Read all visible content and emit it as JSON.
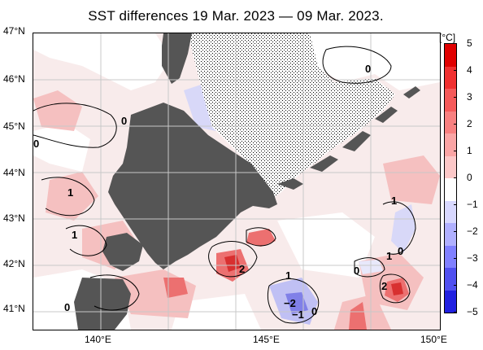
{
  "title": "SST differences 19 Mar. 2023 — 09 Mar. 2023.",
  "lat_labels": [
    "47°N",
    "46°N",
    "45°N",
    "44°N",
    "43°N",
    "42°N",
    "41°N"
  ],
  "lon_labels": [
    "140°E",
    "145°E",
    "150°E"
  ],
  "colorbar": {
    "unit": "[°C]",
    "ticks": [
      "5",
      "4",
      "3",
      "2",
      "1",
      "0",
      "−1",
      "−2",
      "−3",
      "−4",
      "−5"
    ],
    "colors": [
      "#e00000",
      "#f03030",
      "#f55a5a",
      "#f88080",
      "#faa5a5",
      "#fcc8c8",
      "#ffffff",
      "#d8d8ff",
      "#b0b0ff",
      "#8080ff",
      "#5050f0",
      "#2020e0"
    ]
  },
  "contour_labels": [
    {
      "id": "c1",
      "text": "0"
    },
    {
      "id": "c2",
      "text": "0"
    },
    {
      "id": "c3",
      "text": "1"
    },
    {
      "id": "c4",
      "text": "1"
    },
    {
      "id": "c5",
      "text": "0"
    },
    {
      "id": "c6",
      "text": "2"
    },
    {
      "id": "c7",
      "text": "1"
    },
    {
      "id": "c8",
      "text": "−2"
    },
    {
      "id": "c9",
      "text": "−1"
    },
    {
      "id": "c10",
      "text": "0"
    },
    {
      "id": "c11",
      "text": "1"
    },
    {
      "id": "c12",
      "text": "0"
    },
    {
      "id": "c13",
      "text": "1"
    },
    {
      "id": "c14",
      "text": "0"
    },
    {
      "id": "c15",
      "text": "2"
    },
    {
      "id": "c16",
      "text": "0"
    }
  ],
  "colors": {
    "land": "#555555",
    "sea_ice_hatch": "#000000",
    "background_sea": "#f8eeee",
    "grid": "#c8c8c8"
  }
}
